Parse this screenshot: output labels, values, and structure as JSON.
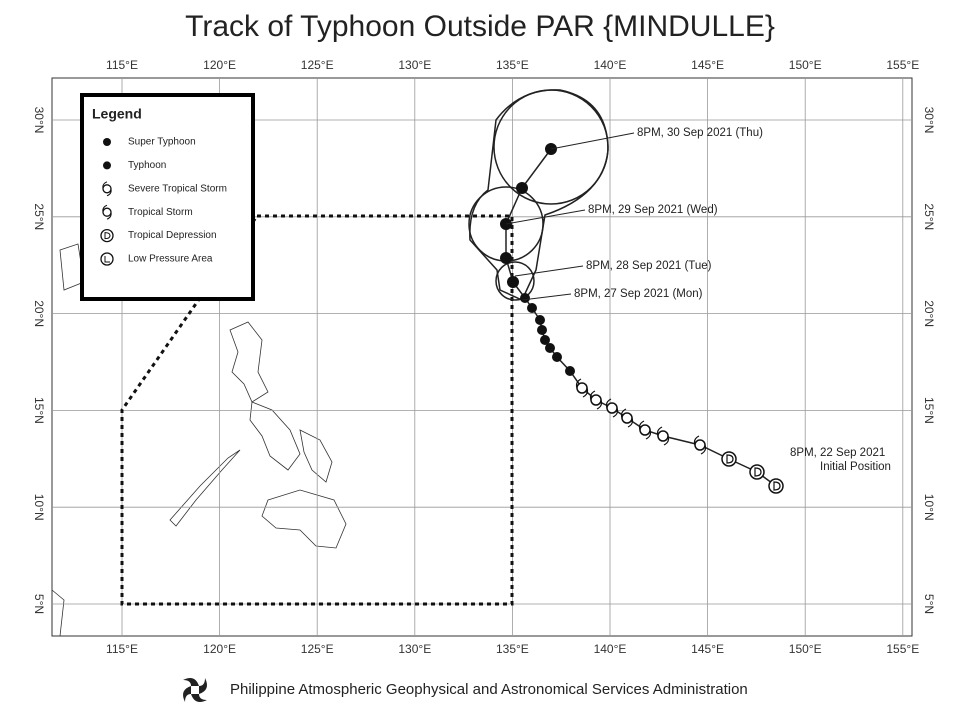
{
  "header": {
    "title": "Track of Typhoon Outside PAR {MINDULLE}"
  },
  "map": {
    "longitude_labels": [
      "115°E",
      "120°E",
      "125°E",
      "130°E",
      "135°E",
      "140°E",
      "145°E",
      "150°E",
      "155°E"
    ],
    "latitude_labels": [
      "5°N",
      "10°N",
      "15°N",
      "20°N",
      "25°N",
      "30°N"
    ]
  },
  "legend": {
    "title": "Legend",
    "items": [
      "Super Typhoon",
      "Typhoon",
      "Severe Tropical Storm",
      "Tropical Storm",
      "Tropical Depression",
      "Low Pressure Area"
    ]
  },
  "annotations": [
    "8PM, 30 Sep 2021 (Thu)",
    "8PM, 29 Sep 2021 (Wed)",
    "8PM, 28 Sep 2021 (Tue)",
    "8PM, 27 Sep 2021 (Mon)",
    "8PM, 22 Sep 2021",
    "Initial Position"
  ],
  "footer": {
    "agency": "Philippine Atmospheric Geophysical and Astronomical Services Administration"
  }
}
